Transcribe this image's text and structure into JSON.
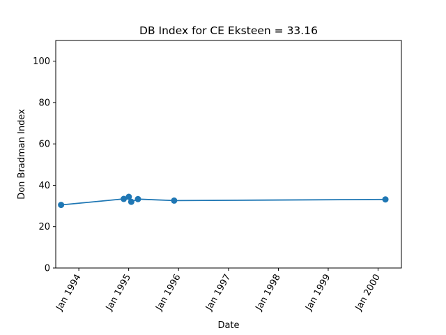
{
  "chart_data": {
    "type": "line",
    "title": "DB Index for CE Eksteen = 33.16",
    "xlabel": "Date",
    "ylabel": "Don Bradman Index",
    "x_ticks": [
      "Jan 1994",
      "Jan 1995",
      "Jan 1996",
      "Jan 1997",
      "Jan 1998",
      "Jan 1999",
      "Jan 2000"
    ],
    "y_ticks": [
      "0",
      "20",
      "40",
      "60",
      "80",
      "100"
    ],
    "xlim": [
      "1993-07-16",
      "2000-06-20"
    ],
    "ylim": [
      0,
      110
    ],
    "grid": false,
    "color": "#1f77b4",
    "series": [
      {
        "x": [
          "1993-08-24",
          "1994-11-26",
          "1995-01-02",
          "1995-01-20",
          "1995-03-10",
          "1995-11-30",
          "2000-02-24"
        ],
        "y": [
          30.5,
          33.4,
          34.4,
          32.0,
          33.3,
          32.6,
          33.16
        ]
      }
    ]
  }
}
